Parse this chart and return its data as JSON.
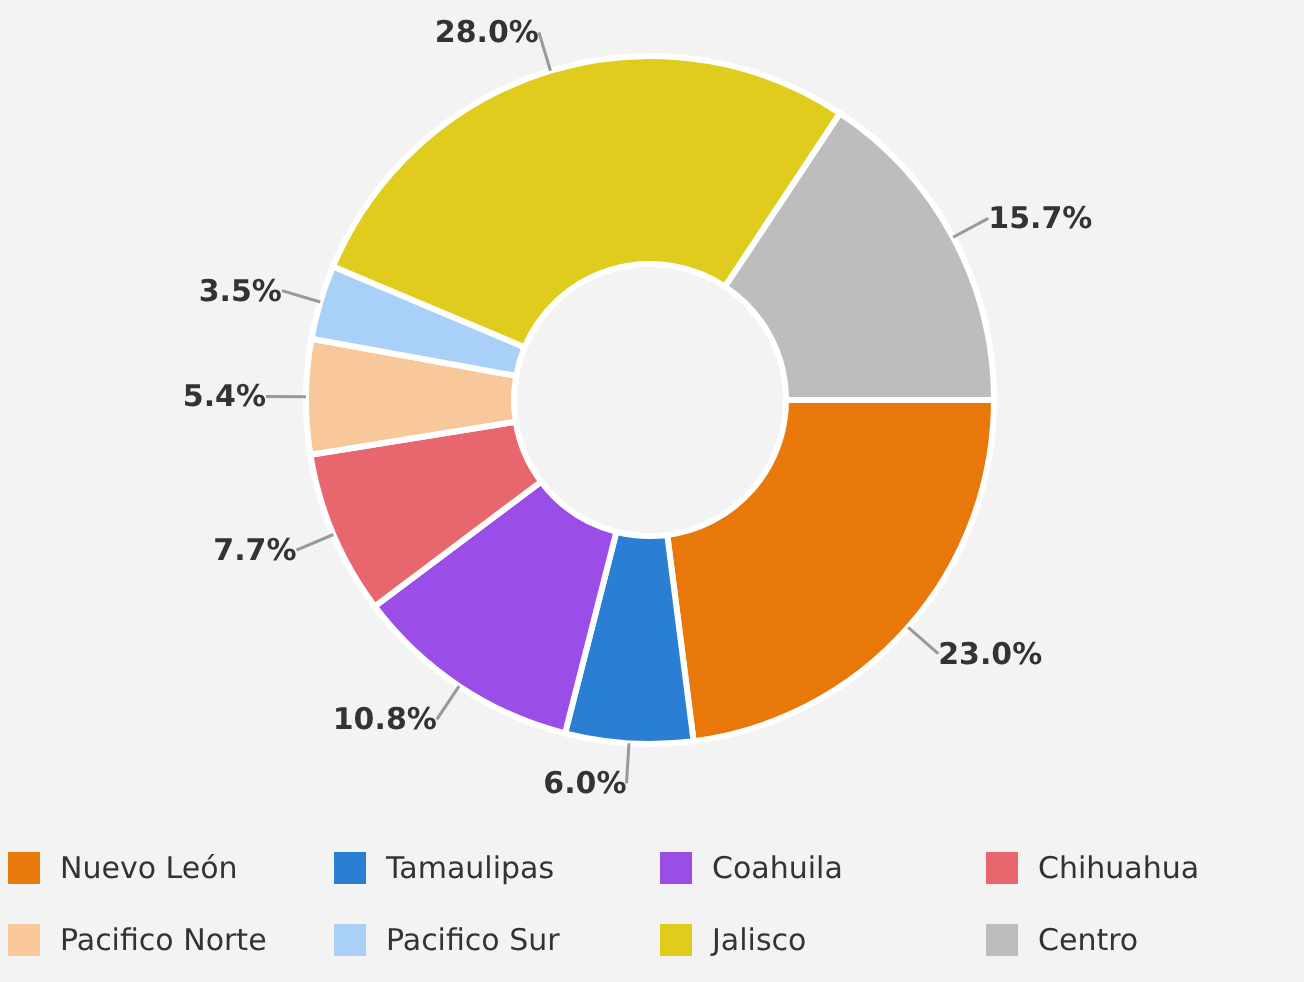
{
  "chart_data": {
    "type": "donut",
    "categories": [
      "Nuevo León",
      "Tamaulipas",
      "Coahuila",
      "Chihuahua",
      "Pacifico Norte",
      "Pacifico Sur",
      "Jalisco",
      "Centro"
    ],
    "values": [
      23.0,
      6.0,
      10.8,
      7.7,
      5.4,
      3.5,
      28.0,
      15.7
    ],
    "colors": [
      "#e8780a",
      "#2a7fd4",
      "#9b4de8",
      "#e8666e",
      "#f8c89a",
      "#a8d0f8",
      "#e0cc1c",
      "#bdbdbd"
    ],
    "value_labels": [
      "23.0%",
      "6.0%",
      "10.8%",
      "7.7%",
      "5.4%",
      "3.5%",
      "28.0%",
      "15.7%"
    ],
    "legend": "bottom"
  }
}
